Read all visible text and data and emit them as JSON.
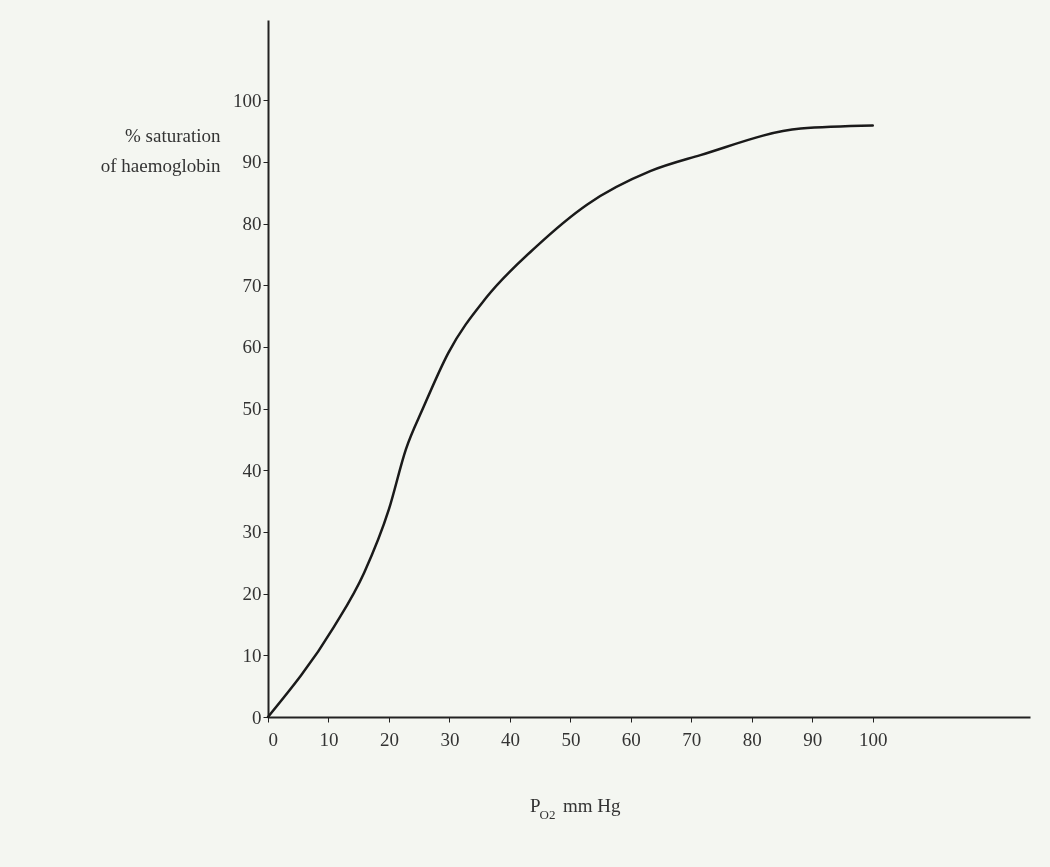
{
  "chart_data": {
    "type": "line",
    "xlabel": "P$_{O2}$ mm Hg",
    "ylabel": "% saturation\nof haemoglobin",
    "x": [
      0,
      10.9,
      15.9,
      20.0,
      22.8,
      25.7,
      29.8,
      36.1,
      44.4,
      52.8,
      63.2,
      71.5,
      88.1,
      100
    ],
    "series": [
      {
        "color": "#1a1a1a",
        "values": [
          0,
          14.6,
          23.4,
          33.7,
          43.4,
          50.2,
          59.0,
          68.0,
          76.3,
          83.1,
          88.5,
          91.1,
          95.4,
          95.9
        ]
      }
    ],
    "xlim": [
      0,
      126
    ],
    "ylim": [
      0,
      113
    ],
    "xticks": [
      0,
      10,
      20,
      30,
      40,
      50,
      60,
      70,
      80,
      90,
      100
    ],
    "yticks": [
      0,
      10,
      20,
      30,
      40,
      50,
      60,
      70,
      80,
      90,
      100
    ],
    "grid": false,
    "marker": "none",
    "line_style": "solid"
  }
}
